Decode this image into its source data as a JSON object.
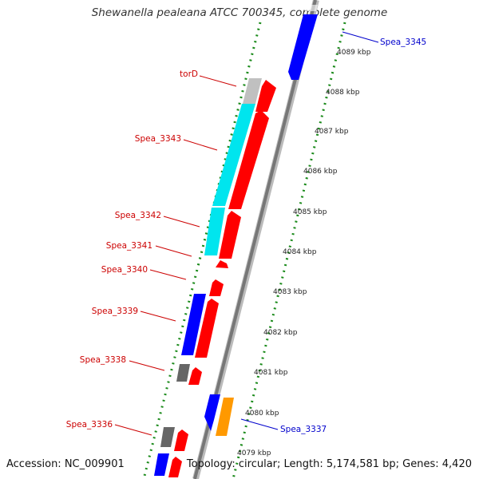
{
  "title": "Shewanella pealeana ATCC 700345, complete genome",
  "footer": {
    "accession": "Accession: NC_009901",
    "stats": "Topology: circular; Length: 5,174,581 bp; Genes: 4,420"
  },
  "ticks": [
    {
      "label": "4089 kbp"
    },
    {
      "label": "4088 kbp"
    },
    {
      "label": "4087 kbp"
    },
    {
      "label": "4086 kbp"
    },
    {
      "label": "4085 kbp"
    },
    {
      "label": "4084 kbp"
    },
    {
      "label": "4083 kbp"
    },
    {
      "label": "4082 kbp"
    },
    {
      "label": "4081 kbp"
    },
    {
      "label": "4080 kbp"
    },
    {
      "label": "4079 kbp"
    }
  ],
  "gene_labels": [
    {
      "text": "Spea_3345",
      "color": "#0000cc"
    },
    {
      "text": "torD",
      "color": "#cc0000"
    },
    {
      "text": "Spea_3343",
      "color": "#cc0000"
    },
    {
      "text": "Spea_3342",
      "color": "#cc0000"
    },
    {
      "text": "Spea_3341",
      "color": "#cc0000"
    },
    {
      "text": "Spea_3340",
      "color": "#cc0000"
    },
    {
      "text": "Spea_3339",
      "color": "#cc0000"
    },
    {
      "text": "Spea_3338",
      "color": "#cc0000"
    },
    {
      "text": "Spea_3337",
      "color": "#0000cc"
    },
    {
      "text": "Spea_3336",
      "color": "#cc0000"
    }
  ],
  "colors": {
    "forward_cds": "#ff0000",
    "reverse_cds": "#0000ff",
    "rna": "#00e5ee",
    "other": "#ff9900",
    "gray_feature": "#666666",
    "light_gray_feature": "#bbbbbb",
    "backbone": "#888888",
    "tick_dots": "#1a8a1a"
  }
}
